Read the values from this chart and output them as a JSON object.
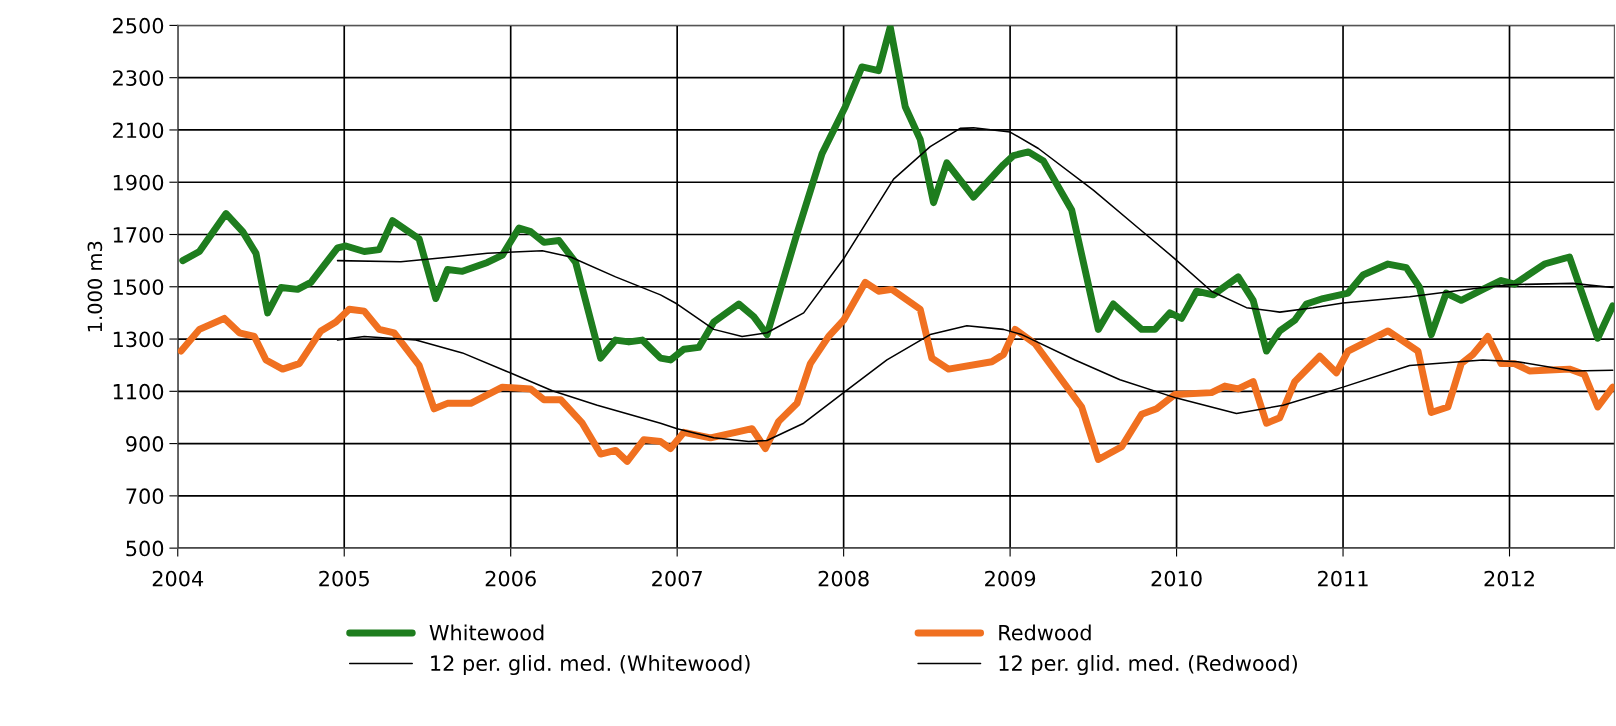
{
  "chart_data": {
    "type": "line",
    "ylabel": "1.000 m3",
    "xlim": [
      2004,
      2012.63
    ],
    "ylim": [
      500,
      2500
    ],
    "xticks": [
      2004,
      2005,
      2006,
      2007,
      2008,
      2009,
      2010,
      2011,
      2012
    ],
    "yticks": [
      500,
      700,
      900,
      1100,
      1300,
      1500,
      1700,
      1900,
      2100,
      2300,
      2500
    ],
    "grid": true,
    "legend": "bottom",
    "marker": "none",
    "line_style": "solid",
    "series": [
      {
        "name": "Whitewood",
        "color": "#1e7d1e",
        "x": [
          2004.03,
          2004.13,
          2004.29,
          2004.39,
          2004.47,
          2004.54,
          2004.62,
          2004.72,
          2004.8,
          2004.96,
          2005.01,
          2005.12,
          2005.21,
          2005.29,
          2005.45,
          2005.55,
          2005.62,
          2005.71,
          2005.86,
          2005.95,
          2006.05,
          2006.12,
          2006.2,
          2006.29,
          2006.39,
          2006.54,
          2006.63,
          2006.71,
          2006.79,
          2006.9,
          2006.96,
          2007.04,
          2007.13,
          2007.22,
          2007.37,
          2007.46,
          2007.54,
          2007.72,
          2007.87,
          2008.01,
          2008.11,
          2008.21,
          2008.28,
          2008.37,
          2008.46,
          2008.54,
          2008.62,
          2008.78,
          2008.96,
          2009.02,
          2009.11,
          2009.2,
          2009.37,
          2009.53,
          2009.62,
          2009.79,
          2009.87,
          2009.96,
          2010.03,
          2010.12,
          2010.22,
          2010.37,
          2010.46,
          2010.54,
          2010.62,
          2010.71,
          2010.78,
          2010.88,
          2011.03,
          2011.12,
          2011.27,
          2011.38,
          2011.46,
          2011.53,
          2011.62,
          2011.71,
          2011.84,
          2011.95,
          2012.03,
          2012.21,
          2012.36,
          2012.53,
          2012.62
        ],
        "values": [
          1600,
          1635,
          1780,
          1711,
          1628,
          1400,
          1497,
          1490,
          1517,
          1649,
          1656,
          1635,
          1642,
          1753,
          1683,
          1455,
          1566,
          1559,
          1593,
          1621,
          1725,
          1711,
          1670,
          1677,
          1593,
          1227,
          1296,
          1289,
          1296,
          1227,
          1220,
          1261,
          1268,
          1365,
          1434,
          1386,
          1317,
          1704,
          2009,
          2189,
          2341,
          2327,
          2493,
          2189,
          2064,
          1822,
          1974,
          1843,
          1967,
          2002,
          2016,
          1981,
          1794,
          1337,
          1434,
          1337,
          1337,
          1400,
          1379,
          1483,
          1469,
          1538,
          1448,
          1254,
          1331,
          1372,
          1434,
          1455,
          1476,
          1545,
          1587,
          1573,
          1497,
          1317,
          1476,
          1448,
          1490,
          1524,
          1510,
          1587,
          1614,
          1303,
          1427
        ]
      },
      {
        "name": "Redwood",
        "color": "#f07020",
        "x": [
          2004.02,
          2004.13,
          2004.28,
          2004.37,
          2004.46,
          2004.53,
          2004.63,
          2004.73,
          2004.86,
          2004.95,
          2005.03,
          2005.12,
          2005.21,
          2005.3,
          2005.45,
          2005.54,
          2005.62,
          2005.76,
          2005.95,
          2006.12,
          2006.2,
          2006.3,
          2006.43,
          2006.54,
          2006.63,
          2006.7,
          2006.8,
          2006.9,
          2006.96,
          2007.04,
          2007.2,
          2007.35,
          2007.45,
          2007.53,
          2007.61,
          2007.72,
          2007.8,
          2007.91,
          2008.0,
          2008.13,
          2008.21,
          2008.29,
          2008.46,
          2008.53,
          2008.63,
          2008.89,
          2008.96,
          2009.03,
          2009.15,
          2009.43,
          2009.53,
          2009.67,
          2009.79,
          2009.88,
          2009.99,
          2010.21,
          2010.29,
          2010.37,
          2010.46,
          2010.54,
          2010.62,
          2010.71,
          2010.86,
          2010.96,
          2011.03,
          2011.14,
          2011.27,
          2011.45,
          2011.53,
          2011.63,
          2011.71,
          2011.78,
          2011.87,
          2011.95,
          2012.03,
          2012.12,
          2012.36,
          2012.45,
          2012.53,
          2012.62
        ],
        "values": [
          1254,
          1337,
          1379,
          1324,
          1310,
          1220,
          1185,
          1206,
          1331,
          1365,
          1414,
          1407,
          1337,
          1324,
          1199,
          1033,
          1054,
          1054,
          1116,
          1109,
          1068,
          1068,
          978,
          860,
          874,
          832,
          915,
          908,
          881,
          943,
          922,
          943,
          957,
          881,
          985,
          1054,
          1206,
          1310,
          1372,
          1517,
          1483,
          1490,
          1414,
          1227,
          1185,
          1213,
          1241,
          1337,
          1282,
          1040,
          839,
          888,
          1012,
          1033,
          1088,
          1095,
          1120,
          1109,
          1137,
          978,
          999,
          1137,
          1234,
          1171,
          1254,
          1289,
          1331,
          1254,
          1019,
          1040,
          1206,
          1241,
          1310,
          1206,
          1206,
          1178,
          1185,
          1164,
          1040,
          1116
        ]
      },
      {
        "name": "12 per. glid. med. (Whitewood)",
        "color": "#000000",
        "x": [
          2004.96,
          2005.34,
          2005.64,
          2005.86,
          2006.19,
          2006.36,
          2006.63,
          2006.9,
          2007.0,
          2007.22,
          2007.39,
          2007.54,
          2007.76,
          2008.0,
          2008.3,
          2008.52,
          2008.7,
          2008.78,
          2009.0,
          2009.17,
          2009.5,
          2009.77,
          2009.99,
          2010.21,
          2010.42,
          2010.62,
          2010.82,
          2011.0,
          2011.4,
          2011.84,
          2012.0,
          2012.38,
          2012.62
        ],
        "values": [
          1600,
          1596,
          1614,
          1628,
          1638,
          1614,
          1538,
          1469,
          1434,
          1337,
          1310,
          1324,
          1400,
          1607,
          1912,
          2036,
          2106,
          2108,
          2092,
          2029,
          1870,
          1725,
          1607,
          1483,
          1420,
          1403,
          1420,
          1438,
          1462,
          1497,
          1508,
          1513,
          1497
        ]
      },
      {
        "name": "12 per. glid. med. (Redwood)",
        "color": "#000000",
        "x": [
          2004.96,
          2005.12,
          2005.43,
          2005.71,
          2005.97,
          2006.25,
          2006.52,
          2006.71,
          2006.9,
          2007.0,
          2007.22,
          2007.43,
          2007.54,
          2007.76,
          2008.0,
          2008.26,
          2008.52,
          2008.74,
          2008.96,
          2009.07,
          2009.39,
          2009.66,
          2010.0,
          2010.36,
          2010.64,
          2011.0,
          2011.4,
          2011.84,
          2012.05,
          2012.38,
          2012.62
        ],
        "values": [
          1296,
          1310,
          1296,
          1247,
          1178,
          1102,
          1047,
          1012,
          978,
          957,
          922,
          908,
          912,
          978,
          1095,
          1220,
          1317,
          1351,
          1337,
          1317,
          1220,
          1144,
          1074,
          1015,
          1047,
          1116,
          1199,
          1220,
          1213,
          1178,
          1181
        ]
      }
    ]
  }
}
